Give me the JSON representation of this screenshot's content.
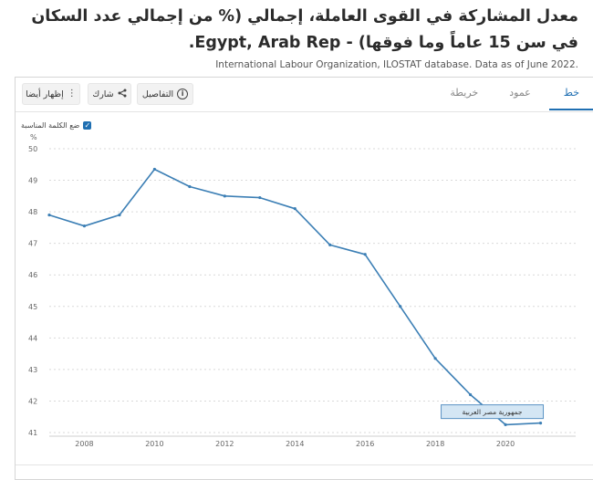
{
  "title": "معدل المشاركة في القوى العاملة، إجمالي (% من إجمالي عدد السكان في سن 15 عاماً وما فوقها) - Egypt, Arab Rep.",
  "source": "International Labour Organization, ILOSTAT database. Data as of June 2022.",
  "tabs": [
    {
      "label": "خط",
      "active": true
    },
    {
      "label": "عمود",
      "active": false
    },
    {
      "label": "خريطة",
      "active": false
    }
  ],
  "toolbar": {
    "details_label": "التفاصيل",
    "details_icon": "info-icon",
    "share_label": "شارك",
    "share_icon": "share-icon",
    "show_label": "إظهار أيضا",
    "show_icon": "vertical-dots-icon"
  },
  "checkbox": {
    "label": "ضع الكلمة المناسبة",
    "checked": true
  },
  "colors": {
    "line": "#3c7fb5",
    "accent": "#1f6fb2",
    "grid": "#d9d9d9"
  },
  "chart_data": {
    "type": "line",
    "ylabel": "%",
    "ylim": [
      41,
      50
    ],
    "xlim": [
      2007,
      2022
    ],
    "y_ticks": [
      41,
      42,
      43,
      44,
      45,
      46,
      47,
      48,
      49,
      50
    ],
    "x_ticks": [
      2008,
      2010,
      2012,
      2014,
      2016,
      2018,
      2020
    ],
    "grid": "horizontal-dashed",
    "series": [
      {
        "name": "جمهورية مصر العربية",
        "x": [
          2007,
          2008,
          2009,
          2010,
          2011,
          2012,
          2013,
          2014,
          2015,
          2016,
          2017,
          2018,
          2019,
          2020,
          2021
        ],
        "values": [
          47.9,
          47.55,
          47.9,
          49.35,
          48.8,
          48.5,
          48.45,
          48.1,
          46.95,
          46.65,
          45.0,
          43.35,
          42.2,
          41.25,
          41.3
        ]
      }
    ]
  }
}
